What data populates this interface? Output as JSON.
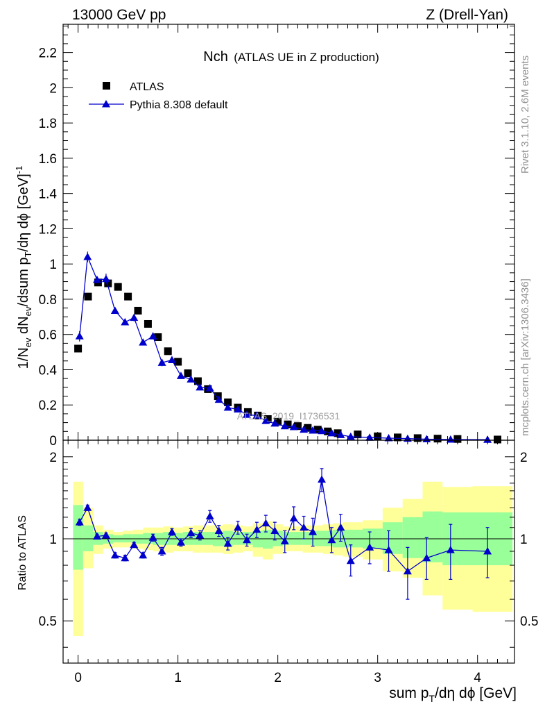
{
  "header": {
    "left": "13000 GeV pp",
    "right": "Z (Drell-Yan)"
  },
  "side_labels": {
    "rivet": "Rivet 3.1.10,  2.6M events",
    "mcplots": "mcplots.cern.ch [arXiv:1306.3436]"
  },
  "chart_data": [
    {
      "type": "scatter",
      "panel": "main",
      "title": "Nch",
      "subtitle": "(ATLAS UE in Z production)",
      "watermark": "ATLAS_2019_I1736531",
      "xlabel": "",
      "ylabel": "1/N_ev dN_ev/dsum p_T/dη dϕ [GeV]^-1",
      "ylabel_parts": {
        "a": "1/N",
        "b": "ev",
        "c": " dN",
        "d": "ev",
        "e": "/dsum p",
        "f": "T",
        "g": "/dη dϕ  [GeV]",
        "h": "-1"
      },
      "xlim": [
        -0.15,
        4.37
      ],
      "ylim": [
        0,
        2.36
      ],
      "yticks": [
        0,
        0.2,
        0.4,
        0.6,
        0.8,
        1,
        1.2,
        1.4,
        1.6,
        1.8,
        2,
        2.2
      ],
      "ytick_labels": [
        "0",
        "0.2",
        "0.4",
        "0.6",
        "0.8",
        "1",
        "1.2",
        "1.4",
        "1.6",
        "1.8",
        "2",
        "2.2"
      ],
      "legend": {
        "position": "top-left",
        "entries": [
          {
            "name": "ATLAS",
            "marker": "square",
            "color": "#000000"
          },
          {
            "name": "Pythia 8.308 default",
            "marker": "triangle",
            "color": "#0000cc"
          }
        ]
      },
      "series": [
        {
          "name": "ATLAS",
          "x": [
            0,
            0.1,
            0.2,
            0.3,
            0.4,
            0.5,
            0.6,
            0.7,
            0.8,
            0.9,
            1.0,
            1.1,
            1.2,
            1.3,
            1.4,
            1.5,
            1.6,
            1.7,
            1.8,
            1.9,
            2.0,
            2.1,
            2.2,
            2.3,
            2.4,
            2.5,
            2.6,
            2.8,
            3.0,
            3.2,
            3.4,
            3.6,
            3.8,
            4.2
          ],
          "y": [
            0.52,
            0.815,
            0.895,
            0.89,
            0.87,
            0.815,
            0.735,
            0.66,
            0.585,
            0.505,
            0.445,
            0.38,
            0.335,
            0.29,
            0.25,
            0.215,
            0.185,
            0.16,
            0.14,
            0.12,
            0.105,
            0.09,
            0.08,
            0.07,
            0.06,
            0.05,
            0.04,
            0.033,
            0.022,
            0.016,
            0.012,
            0.009,
            0.007,
            0.004
          ]
        },
        {
          "name": "Pythia 8.308 default",
          "x": [
            0.015,
            0.095,
            0.19,
            0.28,
            0.37,
            0.47,
            0.56,
            0.65,
            0.75,
            0.84,
            0.94,
            1.03,
            1.13,
            1.22,
            1.32,
            1.41,
            1.5,
            1.6,
            1.69,
            1.79,
            1.88,
            1.97,
            2.07,
            2.16,
            2.26,
            2.35,
            2.44,
            2.54,
            2.63,
            2.73,
            2.92,
            3.11,
            3.3,
            3.49,
            3.73,
            4.1
          ],
          "y": [
            0.59,
            1.04,
            0.91,
            0.915,
            0.735,
            0.67,
            0.695,
            0.555,
            0.59,
            0.44,
            0.455,
            0.365,
            0.345,
            0.3,
            0.295,
            0.23,
            0.185,
            0.175,
            0.145,
            0.14,
            0.11,
            0.095,
            0.08,
            0.075,
            0.06,
            0.055,
            0.052,
            0.04,
            0.03,
            0.02,
            0.015,
            0.012,
            0.009,
            0.006,
            0.004,
            0.003
          ],
          "err": [
            0.03,
            0.03,
            0.02,
            0.03,
            0.015,
            0.015,
            0.02,
            0.015,
            0.015,
            0.02,
            0.015,
            0.015,
            0.015,
            0.01,
            0.01,
            0.01,
            0.01,
            0.008,
            0.008,
            0.007,
            0.006,
            0.006,
            0.005,
            0.005,
            0.005,
            0.004,
            0.004,
            0.004,
            0.003,
            0.003,
            0.002,
            0.002,
            0.002,
            0.001,
            0.001,
            0.001
          ]
        }
      ]
    },
    {
      "type": "scatter",
      "panel": "ratio",
      "xlabel": "sum p_T/dη dϕ [GeV]",
      "xlabel_parts": {
        "a": "sum p",
        "b": "T",
        "c": "/dη dϕ [GeV]"
      },
      "ylabel": "Ratio to ATLAS",
      "xlim": [
        -0.15,
        4.37
      ],
      "ylim": [
        0.35,
        2.3
      ],
      "yscale": "log",
      "xticks": [
        0,
        1,
        2,
        3,
        4
      ],
      "xtick_labels": [
        "0",
        "1",
        "2",
        "3",
        "4"
      ],
      "yticks": [
        0.5,
        1,
        2
      ],
      "ytick_labels": [
        "0.5",
        "1",
        "2"
      ],
      "bands": {
        "edges": [
          -0.05,
          0.05,
          0.15,
          0.25,
          0.35,
          0.45,
          0.55,
          0.65,
          0.75,
          0.85,
          0.95,
          1.05,
          1.15,
          1.25,
          1.35,
          1.45,
          1.55,
          1.65,
          1.75,
          1.85,
          1.95,
          2.05,
          2.15,
          2.25,
          2.35,
          2.45,
          2.55,
          2.65,
          2.85,
          3.05,
          3.25,
          3.45,
          3.65,
          3.95,
          4.35
        ],
        "yellow_lo": [
          0.44,
          0.78,
          0.88,
          0.92,
          0.93,
          0.93,
          0.92,
          0.91,
          0.9,
          0.89,
          0.9,
          0.9,
          0.89,
          0.89,
          0.89,
          0.88,
          0.89,
          0.9,
          0.86,
          0.84,
          0.88,
          0.9,
          0.9,
          0.89,
          0.89,
          0.88,
          0.87,
          0.86,
          0.84,
          0.76,
          0.72,
          0.62,
          0.55,
          0.54
        ],
        "yellow_hi": [
          1.62,
          1.3,
          1.12,
          1.08,
          1.06,
          1.07,
          1.08,
          1.1,
          1.1,
          1.11,
          1.1,
          1.11,
          1.12,
          1.12,
          1.12,
          1.13,
          1.12,
          1.11,
          1.14,
          1.16,
          1.13,
          1.11,
          1.11,
          1.12,
          1.12,
          1.13,
          1.14,
          1.15,
          1.17,
          1.3,
          1.4,
          1.62,
          1.55,
          1.56
        ],
        "green_lo": [
          0.77,
          0.9,
          0.95,
          0.96,
          0.97,
          0.97,
          0.96,
          0.96,
          0.95,
          0.95,
          0.95,
          0.95,
          0.95,
          0.95,
          0.94,
          0.94,
          0.95,
          0.95,
          0.93,
          0.92,
          0.94,
          0.95,
          0.95,
          0.95,
          0.94,
          0.94,
          0.93,
          0.93,
          0.92,
          0.88,
          0.85,
          0.82,
          0.8,
          0.8
        ],
        "green_hi": [
          1.33,
          1.12,
          1.06,
          1.04,
          1.03,
          1.04,
          1.04,
          1.05,
          1.05,
          1.06,
          1.05,
          1.06,
          1.06,
          1.06,
          1.06,
          1.07,
          1.06,
          1.06,
          1.07,
          1.08,
          1.07,
          1.06,
          1.06,
          1.06,
          1.07,
          1.07,
          1.08,
          1.08,
          1.09,
          1.15,
          1.2,
          1.26,
          1.25,
          1.25
        ]
      },
      "series": [
        {
          "name": "Pythia 8.308 default / ATLAS",
          "x": [
            0.015,
            0.095,
            0.19,
            0.28,
            0.37,
            0.47,
            0.56,
            0.65,
            0.75,
            0.84,
            0.94,
            1.03,
            1.13,
            1.22,
            1.32,
            1.41,
            1.5,
            1.6,
            1.69,
            1.79,
            1.88,
            1.97,
            2.07,
            2.16,
            2.26,
            2.35,
            2.44,
            2.54,
            2.63,
            2.73,
            2.92,
            3.11,
            3.3,
            3.49,
            3.73,
            4.1
          ],
          "y": [
            1.15,
            1.3,
            1.02,
            1.03,
            0.87,
            0.85,
            0.95,
            0.87,
            1.01,
            0.9,
            1.06,
            0.97,
            1.05,
            1.03,
            1.21,
            1.07,
            0.96,
            1.1,
            0.99,
            1.08,
            1.14,
            1.07,
            0.98,
            1.19,
            1.1,
            1.06,
            1.65,
            0.99,
            1.1,
            0.83,
            0.93,
            0.91,
            0.76,
            0.85,
            0.91,
            0.9
          ],
          "err_lo": [
            0.03,
            0.03,
            0.02,
            0.02,
            0.02,
            0.02,
            0.02,
            0.02,
            0.03,
            0.03,
            0.03,
            0.03,
            0.04,
            0.04,
            0.06,
            0.05,
            0.05,
            0.06,
            0.05,
            0.07,
            0.08,
            0.08,
            0.09,
            0.11,
            0.1,
            0.12,
            0.16,
            0.1,
            0.12,
            0.1,
            0.12,
            0.15,
            0.16,
            0.14,
            0.2,
            0.18
          ],
          "err_hi": [
            0.03,
            0.03,
            0.02,
            0.02,
            0.02,
            0.02,
            0.02,
            0.02,
            0.03,
            0.03,
            0.03,
            0.03,
            0.04,
            0.04,
            0.06,
            0.05,
            0.05,
            0.06,
            0.05,
            0.07,
            0.08,
            0.08,
            0.09,
            0.12,
            0.11,
            0.13,
            0.16,
            0.11,
            0.13,
            0.12,
            0.13,
            0.16,
            0.17,
            0.16,
            0.22,
            0.2
          ]
        }
      ]
    }
  ]
}
